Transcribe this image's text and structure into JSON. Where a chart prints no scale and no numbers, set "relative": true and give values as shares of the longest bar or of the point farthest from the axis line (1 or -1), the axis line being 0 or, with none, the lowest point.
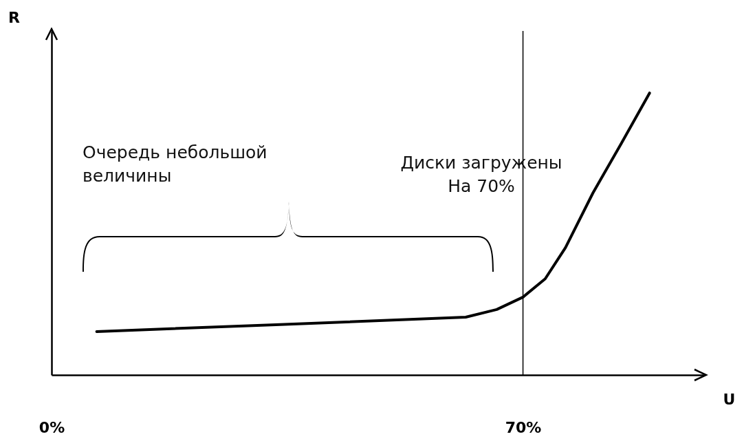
{
  "chart_data": {
    "type": "line",
    "xlabel": "U",
    "ylabel": "R",
    "relative": true,
    "tick_labels": "x",
    "x": [
      6.7,
      33.3,
      61.5,
      66.1,
      70,
      73.3,
      76.3,
      80.4,
      84.5,
      88.8
    ],
    "xlim": [
      0,
      97
    ],
    "xticks": [
      {
        "value": 0,
        "label": "0%"
      },
      {
        "value": 70,
        "label": "70%"
      }
    ],
    "series": [
      {
        "color": "#000000",
        "values": [
          0.154,
          0.178,
          0.205,
          0.232,
          0.276,
          0.341,
          0.451,
          0.646,
          0.817,
          1.0
        ]
      }
    ],
    "ref_lines": [
      {
        "axis": "x",
        "value": 70,
        "color": "#000000"
      }
    ],
    "annotations": [
      "Очередь небольшой величины",
      "Диски загружены На 70%"
    ]
  }
}
